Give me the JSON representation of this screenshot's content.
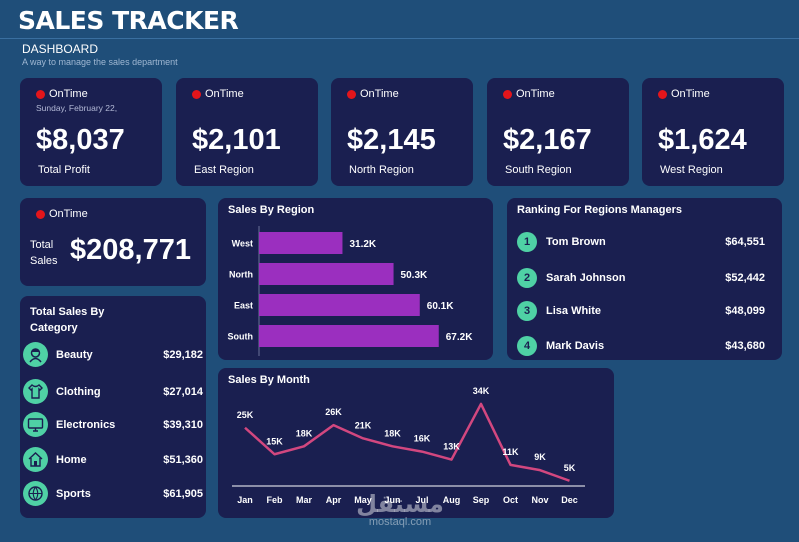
{
  "header": {
    "title": "SALES TRACKER",
    "section": "DASHBOARD",
    "subtitle": "A way to manage the sales department"
  },
  "status_text": "OnTime",
  "kpis": [
    {
      "status": "OnTime",
      "date": "Sunday, February 22,",
      "value": "$8,037",
      "label": "Total Profit"
    },
    {
      "status": "OnTime",
      "value": "$2,101",
      "label": "East Region"
    },
    {
      "status": "OnTime",
      "value": "$2,145",
      "label": "North Region"
    },
    {
      "status": "OnTime",
      "value": "$2,167",
      "label": "South Region"
    },
    {
      "status": "OnTime",
      "value": "$1,624",
      "label": "West Region"
    }
  ],
  "total_sales": {
    "status": "OnTime",
    "label": "Total Sales",
    "value": "$208,771"
  },
  "categories": {
    "title": "Total Sales By Category",
    "items": [
      {
        "name": "Beauty",
        "value": "$29,182",
        "icon": "beauty-icon"
      },
      {
        "name": "Clothing",
        "value": "$27,014",
        "icon": "clothing-icon"
      },
      {
        "name": "Electronics",
        "value": "$39,310",
        "icon": "electronics-icon"
      },
      {
        "name": "Home",
        "value": "$51,360",
        "icon": "home-icon"
      },
      {
        "name": "Sports",
        "value": "$61,905",
        "icon": "sports-icon"
      }
    ]
  },
  "ranking": {
    "title": "Ranking For Regions Managers",
    "items": [
      {
        "rank": "1",
        "name": "Tom Brown",
        "value": "$64,551"
      },
      {
        "rank": "2",
        "name": "Sarah Johnson",
        "value": "$52,442"
      },
      {
        "rank": "3",
        "name": "Lisa White",
        "value": "$48,099"
      },
      {
        "rank": "4",
        "name": "Mark Davis",
        "value": "$43,680"
      }
    ]
  },
  "colors": {
    "background": "#1f4e79",
    "card": "#1a1f50",
    "accent_green": "#4fd1a5",
    "status_red": "#e3151b",
    "bar": "#9b2fbf",
    "line": "#d2477f"
  },
  "watermark": {
    "arabic": "مستقل",
    "latin": "mostaql.com"
  },
  "chart_data": [
    {
      "type": "bar",
      "orientation": "horizontal",
      "title": "Sales By Region",
      "categories": [
        "West",
        "North",
        "East",
        "South"
      ],
      "values": [
        31.2,
        50.3,
        60.1,
        67.2
      ],
      "data_labels": [
        "31.2K",
        "50.3K",
        "60.1K",
        "67.2K"
      ],
      "xlim": [
        0,
        80
      ],
      "grid": false,
      "legend": "none"
    },
    {
      "type": "line",
      "title": "Sales By Month",
      "categories": [
        "Jan",
        "Feb",
        "Mar",
        "Apr",
        "May",
        "Jun",
        "Jul",
        "Aug",
        "Sep",
        "Oct",
        "Nov",
        "Dec"
      ],
      "values": [
        25,
        15,
        18,
        26,
        21,
        18,
        16,
        13,
        34,
        11,
        9,
        5
      ],
      "data_labels": [
        "25K",
        "15K",
        "18K",
        "26K",
        "21K",
        "18K",
        "16K",
        "13K",
        "34K",
        "11K",
        "9K",
        "5K"
      ],
      "ylim": [
        0,
        40
      ],
      "grid": false,
      "legend": "none"
    }
  ]
}
